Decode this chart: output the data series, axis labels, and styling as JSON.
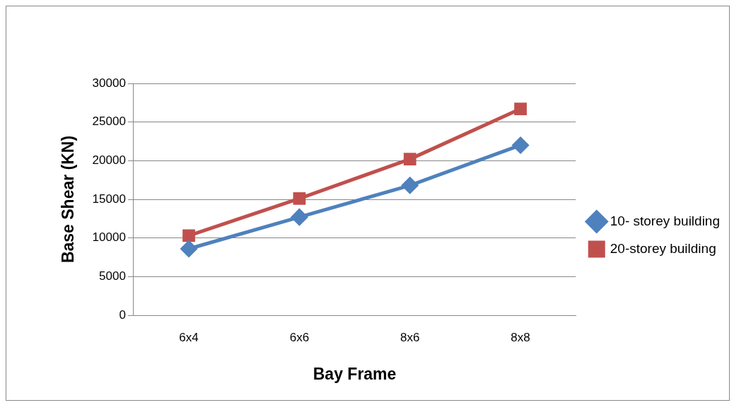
{
  "chart_data": {
    "type": "line",
    "xlabel": "Bay Frame",
    "ylabel": "Base Shear (KN)",
    "categories": [
      "6x4",
      "6x6",
      "8x6",
      "8x8"
    ],
    "series": [
      {
        "name": "10- storey building",
        "color": "#4f81bd",
        "marker": "diamond",
        "values": [
          8600,
          12700,
          16800,
          22000
        ]
      },
      {
        "name": "20-storey building",
        "color": "#c0504d",
        "marker": "square",
        "values": [
          10300,
          15100,
          20200,
          26700
        ]
      }
    ],
    "ylim": [
      0,
      30000
    ],
    "yticks": [
      0,
      5000,
      10000,
      15000,
      20000,
      25000,
      30000
    ],
    "grid": "y",
    "legend": "right",
    "line_style": "solid"
  }
}
